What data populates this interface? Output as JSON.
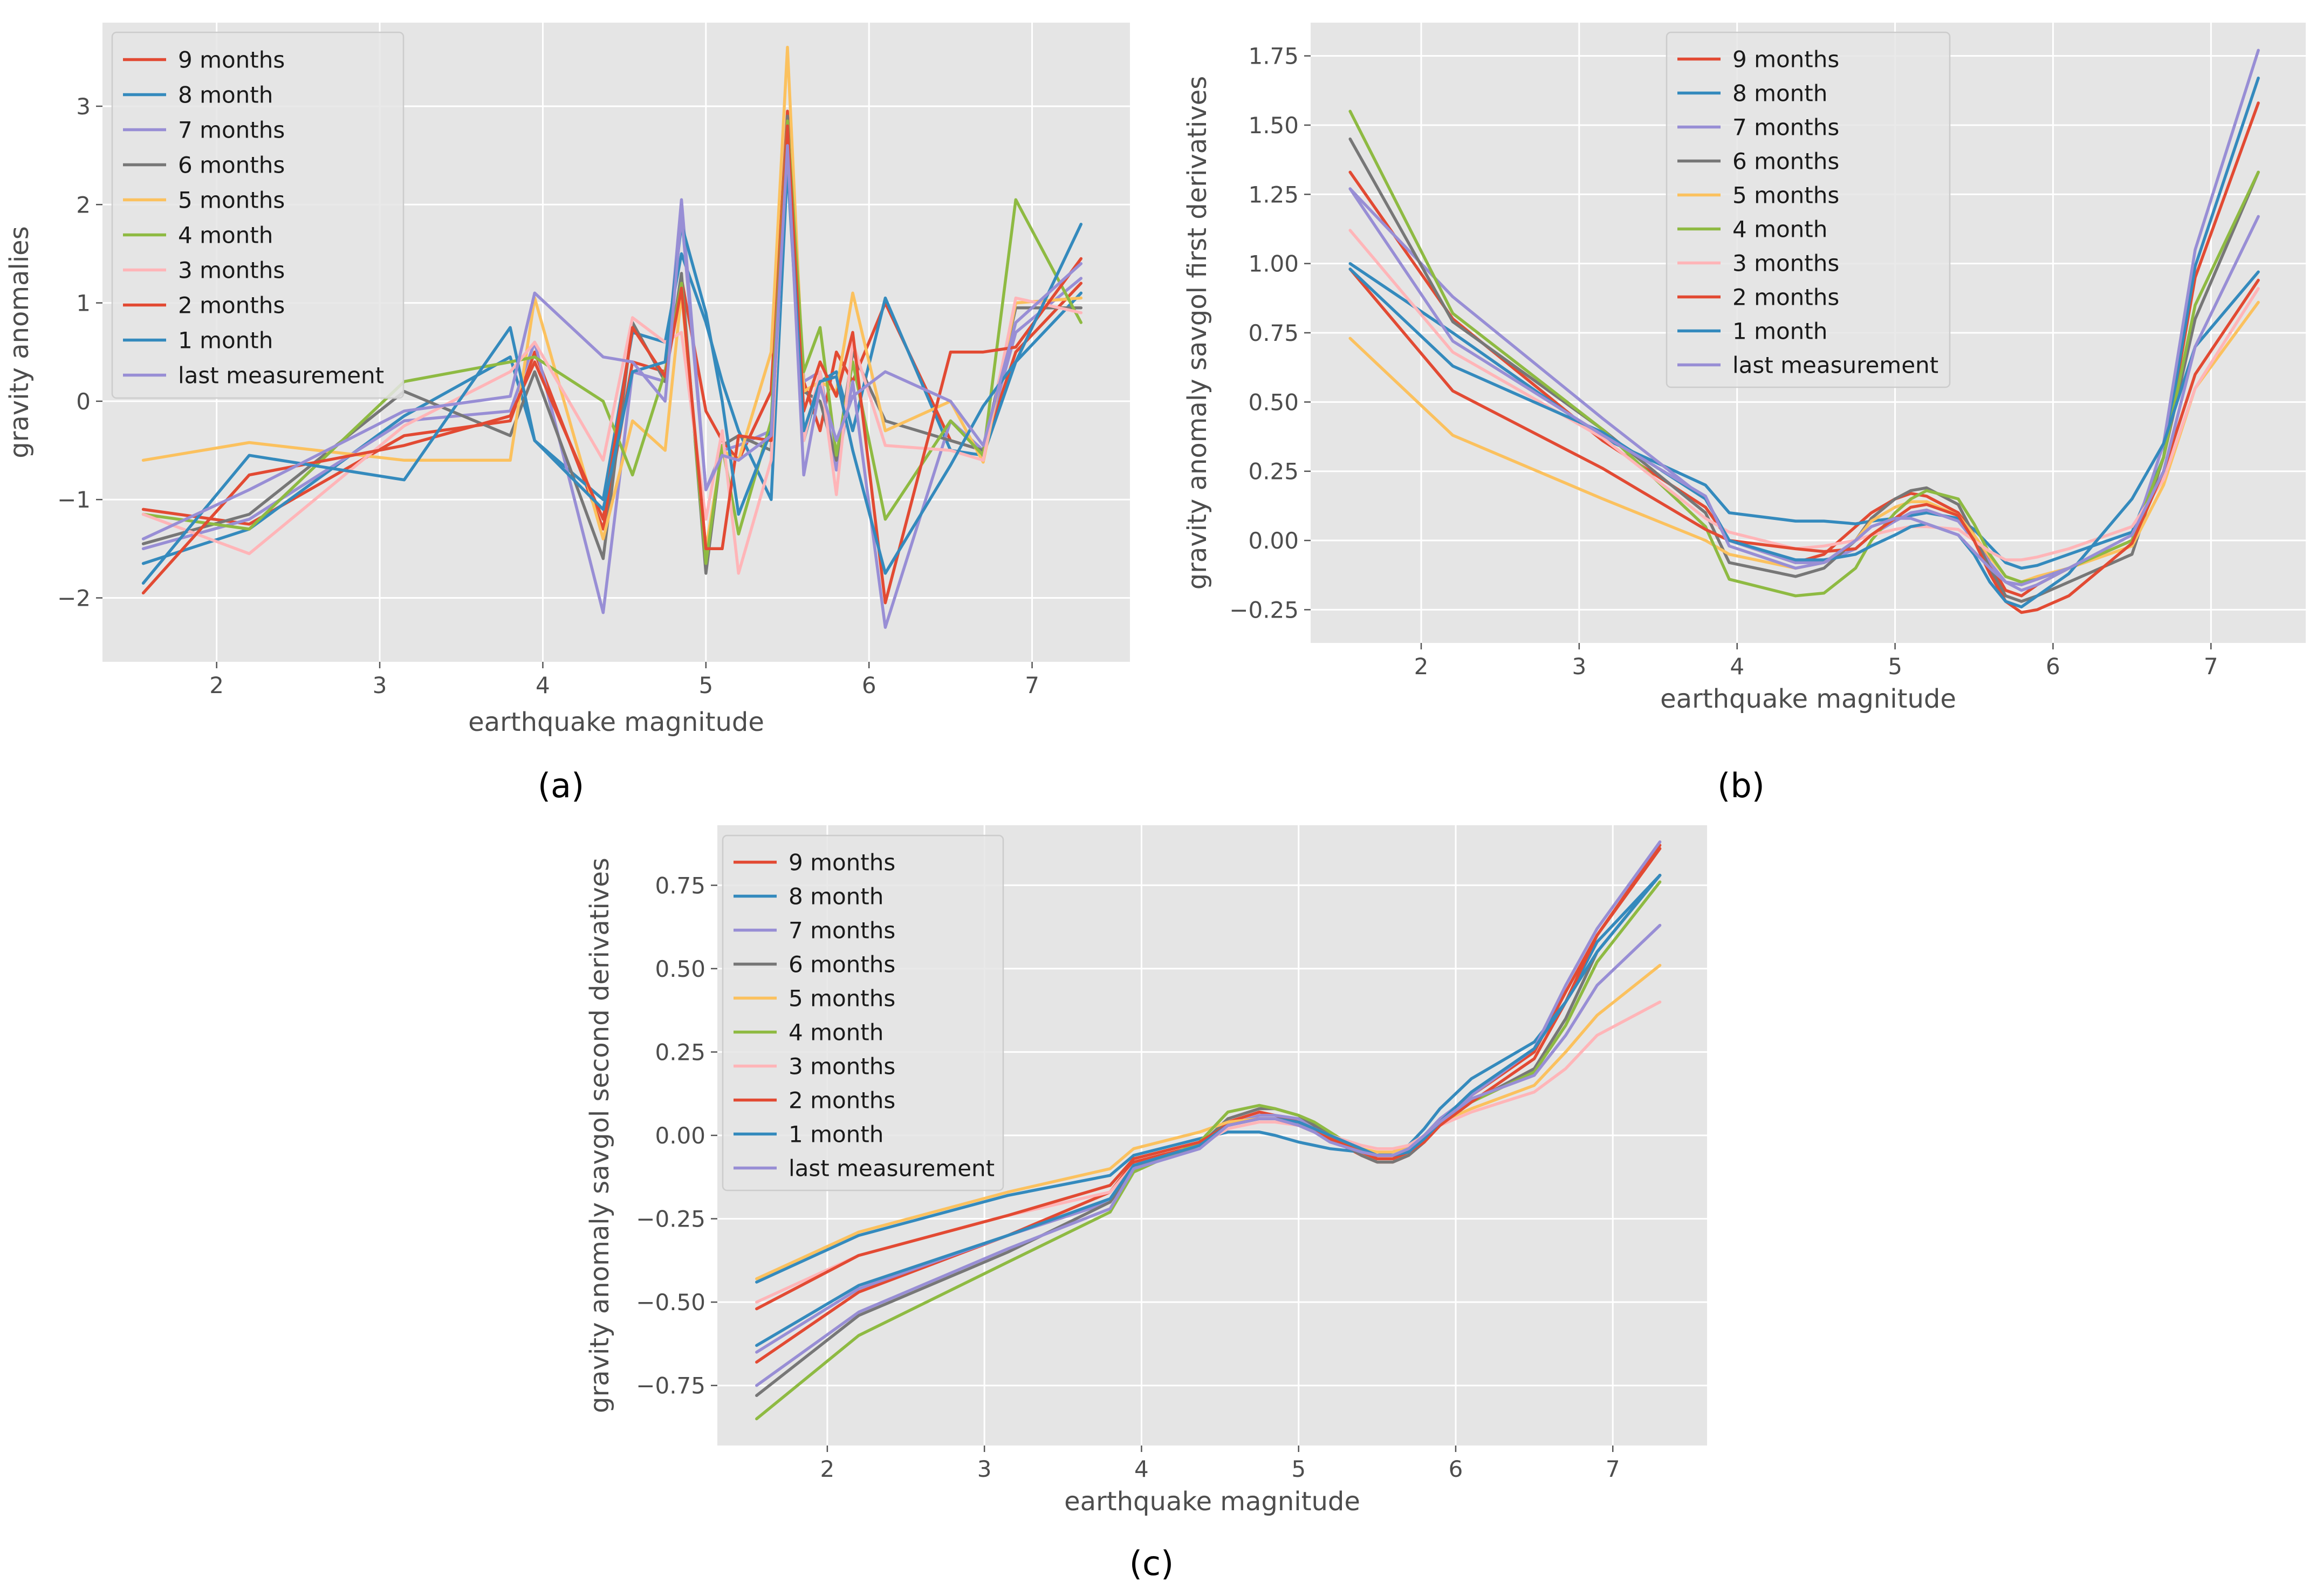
{
  "figure": {
    "colors": {
      "background": "#e5e5e5",
      "grid": "#ffffff",
      "legend_bg": "#e5e5e5",
      "legend_border": "#cccccc",
      "palette": [
        "#E24A33",
        "#348ABD",
        "#988ED5",
        "#777777",
        "#FBC15E",
        "#8EBA42",
        "#FFB5B8",
        "#E24A33",
        "#348ABD",
        "#988ED5"
      ]
    },
    "legend_labels": [
      "9 months",
      "8 month",
      "7 months",
      "6 months",
      "5 months",
      "4 month",
      "3 months",
      "2 months",
      "1 month",
      "last measurement"
    ]
  },
  "chart_data": [
    {
      "panel": "(a)",
      "type": "line",
      "title": "",
      "xlabel": "earthquake magnitude",
      "ylabel": "gravity anomalies",
      "xlim": [
        1.3,
        7.6
      ],
      "ylim": [
        -2.65,
        3.85
      ],
      "xticks": [
        2,
        3,
        4,
        5,
        6,
        7
      ],
      "yticks": [
        -2,
        -1,
        0,
        1,
        2,
        3
      ],
      "legend_position": "upper-left",
      "x": [
        1.55,
        2.2,
        3.15,
        3.8,
        3.95,
        4.37,
        4.55,
        4.75,
        4.85,
        5.0,
        5.1,
        5.2,
        5.4,
        5.5,
        5.6,
        5.7,
        5.8,
        5.9,
        6.1,
        6.5,
        6.7,
        6.9,
        7.3
      ],
      "series": [
        {
          "name": "9 months",
          "values": [
            -1.1,
            -1.25,
            -0.35,
            -0.2,
            0.5,
            -1.3,
            0.4,
            0.3,
            1.25,
            -0.1,
            -0.4,
            -0.6,
            0.1,
            2.95,
            0.2,
            -0.3,
            0.5,
            0.2,
            1.0,
            -0.4,
            -0.5,
            0.5,
            1.2
          ]
        },
        {
          "name": "8 month",
          "values": [
            -1.65,
            -1.3,
            -0.15,
            0.45,
            -0.4,
            -1.0,
            0.7,
            0.6,
            1.5,
            0.8,
            0.2,
            -0.3,
            -1.0,
            2.4,
            -0.4,
            0.2,
            0.3,
            -0.3,
            1.05,
            -0.5,
            -0.55,
            0.4,
            1.1
          ]
        },
        {
          "name": "7 months",
          "values": [
            -1.5,
            -1.2,
            -0.2,
            -0.1,
            0.6,
            -2.15,
            0.3,
            0.2,
            2.05,
            -0.9,
            -0.5,
            -0.45,
            -0.3,
            2.5,
            0.2,
            0.3,
            -0.7,
            0.2,
            -2.3,
            -0.2,
            -0.5,
            0.7,
            1.25
          ]
        },
        {
          "name": "6 months",
          "values": [
            -1.45,
            -1.15,
            0.1,
            -0.35,
            0.3,
            -1.6,
            0.8,
            0.2,
            1.3,
            -1.75,
            -0.45,
            -0.35,
            -0.5,
            2.9,
            0.1,
            0.0,
            -0.6,
            0.5,
            -0.2,
            -0.4,
            -0.5,
            0.95,
            0.95
          ]
        },
        {
          "name": "5 months",
          "values": [
            -0.6,
            -0.42,
            -0.6,
            -0.6,
            1.05,
            -1.4,
            -0.2,
            -0.5,
            1.1,
            -1.5,
            -0.5,
            -0.6,
            0.5,
            3.6,
            0.1,
            0.2,
            0.1,
            1.1,
            -0.3,
            0.0,
            -0.62,
            1.0,
            1.05
          ]
        },
        {
          "name": "4 month",
          "values": [
            -1.15,
            -1.3,
            0.2,
            0.4,
            0.45,
            0.0,
            -0.75,
            0.3,
            1.2,
            -1.65,
            -0.45,
            -1.35,
            -0.2,
            2.85,
            0.3,
            0.75,
            -0.55,
            0.4,
            -1.2,
            -0.2,
            -0.55,
            2.05,
            0.8
          ]
        },
        {
          "name": "3 months",
          "values": [
            -1.15,
            -1.55,
            -0.25,
            0.3,
            0.6,
            -0.6,
            0.85,
            0.6,
            0.7,
            -1.2,
            -0.3,
            -1.75,
            -0.6,
            2.75,
            -0.4,
            0.3,
            -0.95,
            0.6,
            -0.45,
            -0.5,
            -0.6,
            1.05,
            0.9
          ]
        },
        {
          "name": "2 months",
          "values": [
            -1.95,
            -0.75,
            -0.45,
            -0.15,
            0.4,
            -1.2,
            0.75,
            0.25,
            1.15,
            -1.5,
            -1.5,
            -0.35,
            -0.4,
            2.8,
            -0.1,
            0.4,
            0.05,
            0.7,
            -2.05,
            0.5,
            0.5,
            0.55,
            1.45
          ]
        },
        {
          "name": "1 month",
          "values": [
            -1.85,
            -0.55,
            -0.8,
            0.75,
            -0.4,
            -1.1,
            0.3,
            0.4,
            1.8,
            0.9,
            0.0,
            -1.15,
            -0.3,
            2.45,
            -0.3,
            0.2,
            0.25,
            -0.5,
            -1.75,
            -0.65,
            -0.05,
            0.4,
            1.8
          ]
        },
        {
          "name": "last measurement",
          "values": [
            -1.4,
            -0.9,
            -0.1,
            0.05,
            1.1,
            0.45,
            0.4,
            0.0,
            1.9,
            -0.9,
            -0.55,
            -0.6,
            -0.35,
            2.6,
            -0.75,
            0.15,
            -0.4,
            0.05,
            0.3,
            0.0,
            -0.45,
            0.8,
            1.4
          ]
        }
      ]
    },
    {
      "panel": "(b)",
      "type": "line",
      "title": "",
      "xlabel": "earthquake magnitude",
      "ylabel": "gravity anomaly savgol first derivatives",
      "xlim": [
        1.3,
        7.6
      ],
      "ylim": [
        -0.37,
        1.87
      ],
      "xticks": [
        2,
        3,
        4,
        5,
        6,
        7
      ],
      "yticks": [
        -0.25,
        0.0,
        0.25,
        0.5,
        0.75,
        1.0,
        1.25,
        1.5,
        1.75
      ],
      "legend_position": "upper-center",
      "x": [
        1.55,
        2.2,
        3.15,
        3.8,
        3.95,
        4.37,
        4.55,
        4.75,
        4.85,
        5.0,
        5.1,
        5.2,
        5.4,
        5.5,
        5.6,
        5.7,
        5.8,
        5.9,
        6.1,
        6.5,
        6.7,
        6.9,
        7.3
      ],
      "series": [
        {
          "name": "9 months",
          "values": [
            1.33,
            0.8,
            0.36,
            0.12,
            0.0,
            -0.08,
            -0.05,
            0.05,
            0.1,
            0.15,
            0.17,
            0.16,
            0.1,
            0.02,
            -0.08,
            -0.18,
            -0.2,
            -0.16,
            -0.1,
            0.0,
            0.3,
            0.95,
            1.58
          ]
        },
        {
          "name": "8 month",
          "values": [
            1.0,
            0.75,
            0.37,
            0.2,
            0.1,
            0.07,
            0.07,
            0.06,
            0.07,
            0.08,
            0.09,
            0.1,
            0.08,
            0.04,
            -0.02,
            -0.08,
            -0.1,
            -0.09,
            -0.05,
            0.03,
            0.3,
            0.99,
            1.67
          ]
        },
        {
          "name": "7 months",
          "values": [
            1.27,
            0.88,
            0.44,
            0.15,
            0.0,
            -0.08,
            -0.08,
            -0.03,
            0.02,
            0.07,
            0.1,
            0.11,
            0.07,
            0.0,
            -0.08,
            -0.15,
            -0.18,
            -0.16,
            -0.1,
            0.0,
            0.35,
            1.05,
            1.77
          ]
        },
        {
          "name": "6 months",
          "values": [
            1.45,
            0.79,
            0.4,
            0.1,
            -0.08,
            -0.13,
            -0.1,
            0.0,
            0.08,
            0.15,
            0.18,
            0.19,
            0.13,
            0.02,
            -0.1,
            -0.2,
            -0.22,
            -0.2,
            -0.15,
            -0.05,
            0.3,
            0.8,
            1.33
          ]
        },
        {
          "name": "5 months",
          "values": [
            0.73,
            0.38,
            0.15,
            0.0,
            -0.05,
            -0.1,
            -0.08,
            0.0,
            0.07,
            0.12,
            0.14,
            0.14,
            0.09,
            0.02,
            -0.06,
            -0.13,
            -0.15,
            -0.13,
            -0.1,
            -0.02,
            0.2,
            0.55,
            0.86
          ]
        },
        {
          "name": "4 month",
          "values": [
            1.55,
            0.82,
            0.4,
            0.05,
            -0.14,
            -0.2,
            -0.19,
            -0.1,
            0.0,
            0.1,
            0.15,
            0.18,
            0.15,
            0.06,
            -0.05,
            -0.13,
            -0.15,
            -0.14,
            -0.1,
            0.0,
            0.3,
            0.85,
            1.33
          ]
        },
        {
          "name": "3 months",
          "values": [
            1.12,
            0.68,
            0.37,
            0.08,
            0.03,
            -0.03,
            -0.02,
            0.0,
            0.02,
            0.04,
            0.05,
            0.05,
            0.04,
            0.0,
            -0.04,
            -0.07,
            -0.07,
            -0.06,
            -0.03,
            0.05,
            0.22,
            0.55,
            0.91
          ]
        },
        {
          "name": "2 months",
          "values": [
            0.98,
            0.54,
            0.26,
            0.04,
            0.0,
            -0.03,
            -0.04,
            -0.03,
            0.02,
            0.08,
            0.12,
            0.13,
            0.09,
            0.0,
            -0.12,
            -0.22,
            -0.26,
            -0.25,
            -0.2,
            -0.01,
            0.25,
            0.6,
            0.94
          ]
        },
        {
          "name": "1 month",
          "values": [
            0.98,
            0.63,
            0.39,
            0.15,
            0.0,
            -0.07,
            -0.07,
            -0.05,
            -0.02,
            0.02,
            0.05,
            0.06,
            0.02,
            -0.05,
            -0.15,
            -0.22,
            -0.24,
            -0.2,
            -0.12,
            0.15,
            0.35,
            0.7,
            0.97
          ]
        },
        {
          "name": "last measurement",
          "values": [
            1.27,
            0.72,
            0.38,
            0.16,
            -0.02,
            -0.1,
            -0.08,
            0.0,
            0.05,
            0.08,
            0.08,
            0.06,
            0.02,
            -0.04,
            -0.1,
            -0.15,
            -0.16,
            -0.14,
            -0.1,
            0.02,
            0.25,
            0.7,
            1.17
          ]
        }
      ]
    },
    {
      "panel": "(c)",
      "type": "line",
      "title": "",
      "xlabel": "earthquake magnitude",
      "ylabel": "gravity anomaly savgol second derivatives",
      "xlim": [
        1.3,
        7.6
      ],
      "ylim": [
        -0.93,
        0.93
      ],
      "xticks": [
        2,
        3,
        4,
        5,
        6,
        7
      ],
      "yticks": [
        -0.75,
        -0.5,
        -0.25,
        0.0,
        0.25,
        0.5,
        0.75
      ],
      "legend_position": "upper-left",
      "x": [
        1.55,
        2.2,
        3.15,
        3.8,
        3.95,
        4.37,
        4.55,
        4.75,
        4.85,
        5.0,
        5.1,
        5.2,
        5.4,
        5.5,
        5.6,
        5.7,
        5.8,
        5.9,
        6.1,
        6.5,
        6.7,
        6.9,
        7.3
      ],
      "series": [
        {
          "name": "9 months",
          "values": [
            -0.68,
            -0.47,
            -0.3,
            -0.17,
            -0.08,
            -0.03,
            0.04,
            0.07,
            0.06,
            0.04,
            0.02,
            -0.01,
            -0.06,
            -0.08,
            -0.08,
            -0.06,
            -0.02,
            0.04,
            0.12,
            0.25,
            0.43,
            0.6,
            0.87
          ]
        },
        {
          "name": "8 month",
          "values": [
            -0.44,
            -0.3,
            -0.18,
            -0.12,
            -0.06,
            -0.01,
            0.01,
            0.01,
            0.0,
            -0.02,
            -0.03,
            -0.04,
            -0.05,
            -0.06,
            -0.05,
            -0.03,
            0.02,
            0.08,
            0.17,
            0.28,
            0.4,
            0.58,
            0.78
          ]
        },
        {
          "name": "7 months",
          "values": [
            -0.65,
            -0.46,
            -0.3,
            -0.2,
            -0.1,
            -0.03,
            0.03,
            0.06,
            0.06,
            0.05,
            0.03,
            0.0,
            -0.05,
            -0.07,
            -0.07,
            -0.05,
            0.0,
            0.05,
            0.12,
            0.26,
            0.45,
            0.62,
            0.88
          ]
        },
        {
          "name": "6 months",
          "values": [
            -0.78,
            -0.54,
            -0.35,
            -0.2,
            -0.1,
            -0.03,
            0.05,
            0.08,
            0.08,
            0.06,
            0.03,
            0.0,
            -0.06,
            -0.08,
            -0.08,
            -0.06,
            -0.02,
            0.03,
            0.1,
            0.2,
            0.35,
            0.55,
            0.78
          ]
        },
        {
          "name": "5 months",
          "values": [
            -0.43,
            -0.29,
            -0.17,
            -0.1,
            -0.04,
            0.01,
            0.04,
            0.05,
            0.05,
            0.03,
            0.02,
            0.0,
            -0.04,
            -0.05,
            -0.05,
            -0.03,
            0.0,
            0.04,
            0.08,
            0.15,
            0.25,
            0.36,
            0.51
          ]
        },
        {
          "name": "4 month",
          "values": [
            -0.85,
            -0.6,
            -0.38,
            -0.23,
            -0.11,
            -0.02,
            0.07,
            0.09,
            0.08,
            0.06,
            0.04,
            0.01,
            -0.05,
            -0.07,
            -0.07,
            -0.05,
            -0.01,
            0.03,
            0.1,
            0.19,
            0.33,
            0.52,
            0.76
          ]
        },
        {
          "name": "3 months",
          "values": [
            -0.5,
            -0.36,
            -0.24,
            -0.17,
            -0.09,
            -0.03,
            0.02,
            0.04,
            0.04,
            0.03,
            0.02,
            0.0,
            -0.03,
            -0.04,
            -0.04,
            -0.03,
            0.0,
            0.03,
            0.07,
            0.13,
            0.2,
            0.3,
            0.4
          ]
        },
        {
          "name": "2 months",
          "values": [
            -0.52,
            -0.36,
            -0.24,
            -0.15,
            -0.07,
            -0.02,
            0.03,
            0.05,
            0.05,
            0.03,
            0.01,
            -0.01,
            -0.05,
            -0.07,
            -0.07,
            -0.05,
            -0.02,
            0.03,
            0.1,
            0.23,
            0.4,
            0.6,
            0.86
          ]
        },
        {
          "name": "1 month",
          "values": [
            -0.63,
            -0.45,
            -0.3,
            -0.19,
            -0.09,
            -0.03,
            0.03,
            0.05,
            0.05,
            0.04,
            0.02,
            0.0,
            -0.04,
            -0.06,
            -0.06,
            -0.05,
            -0.01,
            0.04,
            0.13,
            0.26,
            0.4,
            0.55,
            0.78
          ]
        },
        {
          "name": "last measurement",
          "values": [
            -0.75,
            -0.53,
            -0.34,
            -0.22,
            -0.1,
            -0.04,
            0.03,
            0.05,
            0.05,
            0.03,
            0.01,
            -0.02,
            -0.05,
            -0.06,
            -0.06,
            -0.04,
            0.0,
            0.04,
            0.11,
            0.18,
            0.3,
            0.45,
            0.63
          ]
        }
      ]
    }
  ]
}
